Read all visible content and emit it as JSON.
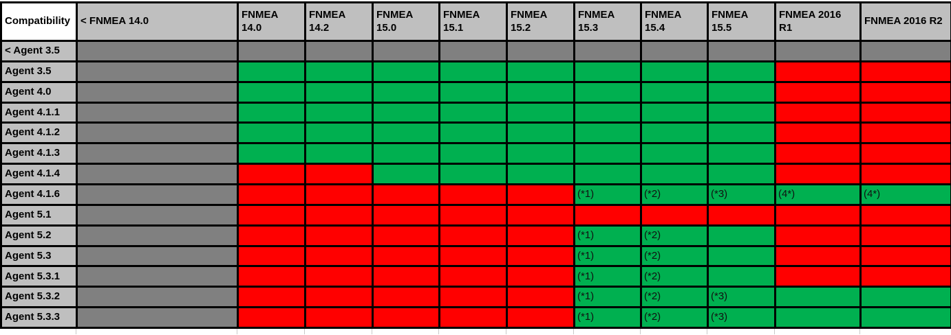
{
  "colors": {
    "green": "#00B050",
    "red": "#FF0000",
    "dark_gray": "#808080",
    "header_gray": "#BFBFBF",
    "corner_white": "#FFFFFF",
    "border_black": "#000000"
  },
  "table": {
    "corner_label": "Compatibility",
    "columns": [
      {
        "label": "< FNMEA 14.0"
      },
      {
        "label": "FNMEA\n14.0"
      },
      {
        "label": "FNMEA\n14.2"
      },
      {
        "label": "FNMEA\n15.0"
      },
      {
        "label": "FNMEA\n15.1"
      },
      {
        "label": "FNMEA\n15.2"
      },
      {
        "label": "FNMEA\n15.3"
      },
      {
        "label": "FNMEA\n15.4"
      },
      {
        "label": "FNMEA\n15.5"
      },
      {
        "label": "FNMEA 2016\nR1"
      },
      {
        "label": "FNMEA 2016 R2"
      }
    ],
    "cell_codes": {
      "X": "gray-na",
      "G": "green-compatible",
      "R": "red-incompatible"
    },
    "rows": [
      {
        "label": "< Agent 3.5",
        "colors": [
          "X",
          "X",
          "X",
          "X",
          "X",
          "X",
          "X",
          "X",
          "X",
          "X",
          "X"
        ],
        "notes": {}
      },
      {
        "label": "Agent 3.5",
        "colors": [
          "X",
          "G",
          "G",
          "G",
          "G",
          "G",
          "G",
          "G",
          "G",
          "R",
          "R"
        ],
        "notes": {}
      },
      {
        "label": "Agent 4.0",
        "colors": [
          "X",
          "G",
          "G",
          "G",
          "G",
          "G",
          "G",
          "G",
          "G",
          "R",
          "R"
        ],
        "notes": {}
      },
      {
        "label": "Agent 4.1.1",
        "colors": [
          "X",
          "G",
          "G",
          "G",
          "G",
          "G",
          "G",
          "G",
          "G",
          "R",
          "R"
        ],
        "notes": {}
      },
      {
        "label": "Agent 4.1.2",
        "colors": [
          "X",
          "G",
          "G",
          "G",
          "G",
          "G",
          "G",
          "G",
          "G",
          "R",
          "R"
        ],
        "notes": {}
      },
      {
        "label": "Agent 4.1.3",
        "colors": [
          "X",
          "G",
          "G",
          "G",
          "G",
          "G",
          "G",
          "G",
          "G",
          "R",
          "R"
        ],
        "notes": {}
      },
      {
        "label": "Agent 4.1.4",
        "colors": [
          "X",
          "R",
          "R",
          "G",
          "G",
          "G",
          "G",
          "G",
          "G",
          "R",
          "R"
        ],
        "notes": {}
      },
      {
        "label": "Agent 4.1.6",
        "colors": [
          "X",
          "R",
          "R",
          "R",
          "R",
          "R",
          "G",
          "G",
          "G",
          "G",
          "G"
        ],
        "notes": {
          "6": "(*1)",
          "7": "(*2)",
          "8": "(*3)",
          "9": "(4*)",
          "10": "(4*)"
        }
      },
      {
        "label": "Agent 5.1",
        "colors": [
          "X",
          "R",
          "R",
          "R",
          "R",
          "R",
          "R",
          "R",
          "R",
          "R",
          "R"
        ],
        "notes": {}
      },
      {
        "label": "Agent 5.2",
        "colors": [
          "X",
          "R",
          "R",
          "R",
          "R",
          "R",
          "G",
          "G",
          "G",
          "R",
          "R"
        ],
        "notes": {
          "6": "(*1)",
          "7": "(*2)"
        }
      },
      {
        "label": "Agent 5.3",
        "colors": [
          "X",
          "R",
          "R",
          "R",
          "R",
          "R",
          "G",
          "G",
          "G",
          "R",
          "R"
        ],
        "notes": {
          "6": "(*1)",
          "7": "(*2)"
        }
      },
      {
        "label": "Agent 5.3.1",
        "colors": [
          "X",
          "R",
          "R",
          "R",
          "R",
          "R",
          "G",
          "G",
          "G",
          "R",
          "R"
        ],
        "notes": {
          "6": "(*1)",
          "7": "(*2)"
        }
      },
      {
        "label": "Agent 5.3.2",
        "colors": [
          "X",
          "R",
          "R",
          "R",
          "R",
          "R",
          "G",
          "G",
          "G",
          "G",
          "G"
        ],
        "notes": {
          "6": "(*1)",
          "7": "(*2)",
          "8": "(*3)"
        }
      },
      {
        "label": "Agent 5.3.3",
        "colors": [
          "X",
          "R",
          "R",
          "R",
          "R",
          "R",
          "G",
          "G",
          "G",
          "G",
          "G"
        ],
        "notes": {
          "6": "(*1)",
          "7": "(*2)",
          "8": "(*3)"
        }
      }
    ]
  }
}
